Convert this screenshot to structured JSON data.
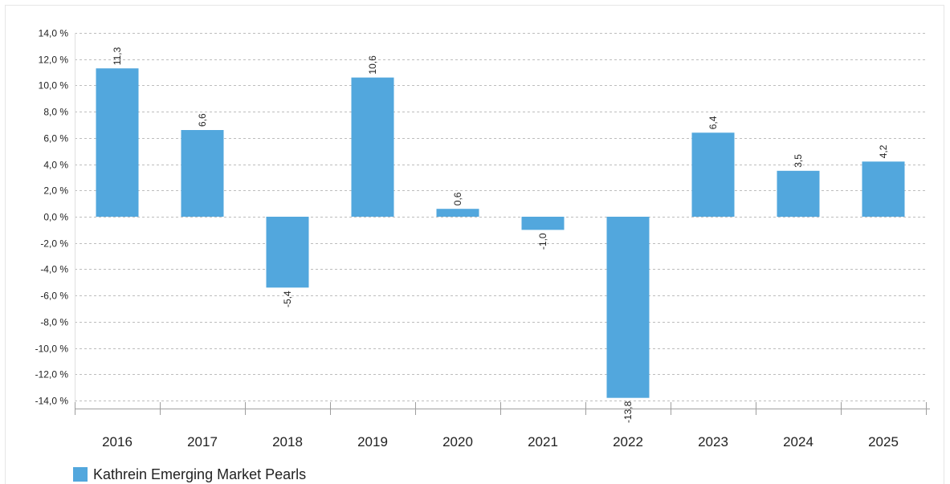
{
  "chart_data": {
    "type": "bar",
    "categories": [
      "2016",
      "2017",
      "2018",
      "2019",
      "2020",
      "2021",
      "2022",
      "2023",
      "2024",
      "2025"
    ],
    "series": [
      {
        "name": "Kathrein Emerging Market Pearls",
        "values": [
          11.3,
          6.6,
          -5.4,
          10.6,
          0.6,
          -1.0,
          -13.8,
          6.4,
          3.5,
          4.2
        ],
        "value_labels": [
          "11,3",
          "6,6",
          "-5,4",
          "10,6",
          "0,6",
          "-1,0",
          "-13,8",
          "6,4",
          "3,5",
          "4,2"
        ],
        "color": "#52a7dd"
      }
    ],
    "title": "",
    "xlabel": "",
    "ylabel": "",
    "ylim": [
      -14,
      14
    ],
    "yticks": [
      14,
      12,
      10,
      8,
      6,
      4,
      2,
      0,
      -2,
      -4,
      -6,
      -8,
      -10,
      -12,
      -14
    ],
    "ytick_labels": [
      "14,0 %",
      "12,0 %",
      "10,0 %",
      "8,0 %",
      "6,0 %",
      "4,0 %",
      "2,0 %",
      "0,0 %",
      "-2,0 %",
      "-4,0 %",
      "-6,0 %",
      "-8,0 %",
      "-10,0 %",
      "-12,0 %",
      "-14,0 %"
    ],
    "grid": true,
    "legend_position": "bottom-left",
    "colors": {
      "bar": "#52a7dd",
      "grid": "#bdbdbd",
      "axis": "#9e9e9e",
      "text": "#222222"
    }
  },
  "legend": {
    "label": "Kathrein Emerging Market Pearls"
  }
}
